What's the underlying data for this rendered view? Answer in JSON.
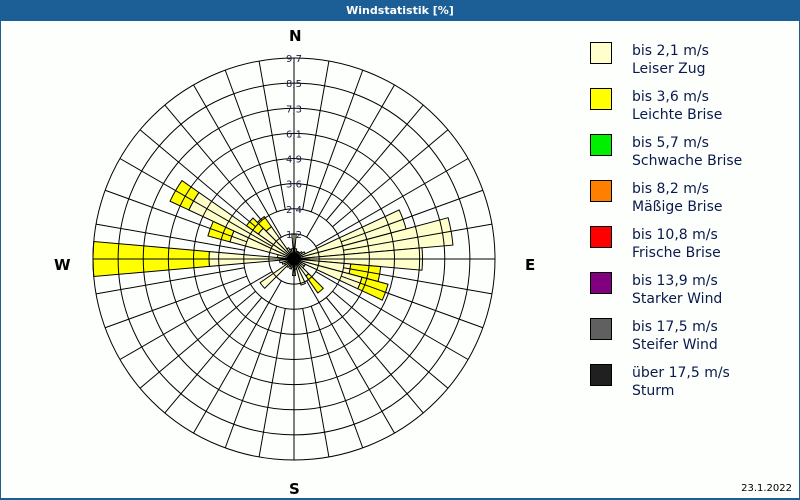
{
  "window": {
    "title": "Windstatistik [%]",
    "date": "23.1.2022"
  },
  "compass": {
    "n": "N",
    "e": "E",
    "s": "S",
    "w": "W"
  },
  "legend": [
    {
      "range": "bis 2,1 m/s",
      "label": "Leiser Zug",
      "color": "#ffffcc"
    },
    {
      "range": "bis 3,6 m/s",
      "label": "Leichte Brise",
      "color": "#ffff00"
    },
    {
      "range": "bis 5,7 m/s",
      "label": "Schwache Brise",
      "color": "#00ee00"
    },
    {
      "range": "bis 8,2 m/s",
      "label": "Mäßige Brise",
      "color": "#ff8000"
    },
    {
      "range": "bis 10,8 m/s",
      "label": "Frische Brise",
      "color": "#ff0000"
    },
    {
      "range": "bis 13,9 m/s",
      "label": "Starker Wind",
      "color": "#800080"
    },
    {
      "range": "bis 17,5 m/s",
      "label": "Steifer Wind",
      "color": "#606060"
    },
    {
      "range": "über 17,5 m/s",
      "label": "Sturm",
      "color": "#202020"
    }
  ],
  "chart_data": {
    "type": "windrose",
    "title": "Windstatistik [%]",
    "unit": "%",
    "radial_ticks": [
      "1,2",
      "2,4",
      "3,6",
      "4,9",
      "6,1",
      "7,3",
      "8,5",
      "9,7"
    ],
    "rmax": 9.7,
    "sector_width_deg": 10,
    "grid": true,
    "legend_position": "right",
    "speed_classes": [
      "bis 2,1 m/s",
      "bis 3,6 m/s",
      "bis 5,7 m/s",
      "bis 8,2 m/s",
      "bis 10,8 m/s",
      "bis 13,9 m/s",
      "bis 17,5 m/s",
      "über 17,5 m/s"
    ],
    "sectors": [
      {
        "dir": 0,
        "values": [
          1.2,
          0
        ]
      },
      {
        "dir": 10,
        "values": [
          0.5,
          0
        ]
      },
      {
        "dir": 20,
        "values": [
          0.4,
          0
        ]
      },
      {
        "dir": 30,
        "values": [
          0.4,
          0
        ]
      },
      {
        "dir": 40,
        "values": [
          0.4,
          0
        ]
      },
      {
        "dir": 50,
        "values": [
          0.5,
          0
        ]
      },
      {
        "dir": 60,
        "values": [
          0.6,
          0
        ]
      },
      {
        "dir": 70,
        "values": [
          5.6,
          0
        ]
      },
      {
        "dir": 80,
        "values": [
          7.7,
          0
        ]
      },
      {
        "dir": 90,
        "values": [
          6.2,
          0
        ]
      },
      {
        "dir": 100,
        "values": [
          2.75,
          1.45
        ]
      },
      {
        "dir": 110,
        "values": [
          3.4,
          1.3
        ]
      },
      {
        "dir": 120,
        "values": [
          0.6,
          0
        ]
      },
      {
        "dir": 130,
        "values": [
          0.6,
          0
        ]
      },
      {
        "dir": 140,
        "values": [
          1.0,
          1.0
        ]
      },
      {
        "dir": 150,
        "values": [
          0.5,
          0
        ]
      },
      {
        "dir": 160,
        "values": [
          1.3,
          0
        ]
      },
      {
        "dir": 170,
        "values": [
          0.5,
          0
        ]
      },
      {
        "dir": 180,
        "values": [
          0.8,
          0
        ]
      },
      {
        "dir": 190,
        "values": [
          0.4,
          0
        ]
      },
      {
        "dir": 200,
        "values": [
          0.5,
          0
        ]
      },
      {
        "dir": 210,
        "values": [
          0.4,
          0
        ]
      },
      {
        "dir": 220,
        "values": [
          0.5,
          0
        ]
      },
      {
        "dir": 230,
        "values": [
          2.0,
          0
        ]
      },
      {
        "dir": 240,
        "values": [
          0.5,
          0
        ]
      },
      {
        "dir": 250,
        "values": [
          0.6,
          0
        ]
      },
      {
        "dir": 260,
        "values": [
          0.7,
          0
        ]
      },
      {
        "dir": 270,
        "values": [
          4.1,
          5.6
        ]
      },
      {
        "dir": 280,
        "values": [
          0.8,
          0
        ]
      },
      {
        "dir": 290,
        "values": [
          3.2,
          1.1
        ]
      },
      {
        "dir": 300,
        "values": [
          5.6,
          1.0
        ]
      },
      {
        "dir": 310,
        "values": [
          2.1,
          0.7
        ]
      },
      {
        "dir": 320,
        "values": [
          1.9,
          0.6
        ]
      },
      {
        "dir": 330,
        "values": [
          0.6,
          0
        ]
      },
      {
        "dir": 340,
        "values": [
          0.5,
          0
        ]
      },
      {
        "dir": 350,
        "values": [
          0.5,
          0
        ]
      }
    ]
  }
}
